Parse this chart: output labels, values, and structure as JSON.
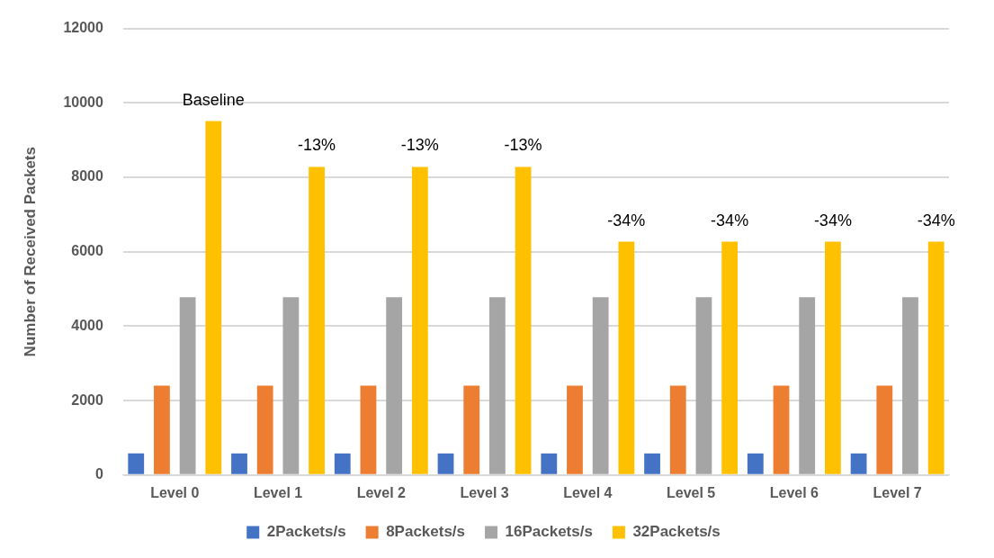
{
  "chart_data": {
    "type": "bar",
    "ylabel": "Number of Received Packets",
    "categories": [
      "Level 0",
      "Level 1",
      "Level 2",
      "Level 3",
      "Level 4",
      "Level 5",
      "Level 6",
      "Level 7"
    ],
    "series": [
      {
        "name": "2Packets/s",
        "color": "#4472c4",
        "values": [
          580,
          580,
          580,
          580,
          580,
          580,
          580,
          580
        ]
      },
      {
        "name": "8Packets/s",
        "color": "#ed7d31",
        "values": [
          2400,
          2400,
          2400,
          2400,
          2400,
          2400,
          2400,
          2400
        ]
      },
      {
        "name": "16Packets/s",
        "color": "#a5a5a5",
        "values": [
          4780,
          4780,
          4780,
          4780,
          4780,
          4780,
          4780,
          4780
        ]
      },
      {
        "name": "32Packets/s",
        "color": "#ffc000",
        "values": [
          9510,
          8280,
          8280,
          8280,
          6270,
          6270,
          6270,
          6270
        ]
      }
    ],
    "annotations": [
      "Baseline",
      "-13%",
      "-13%",
      "-13%",
      "-34%",
      "-34%",
      "-34%",
      "-34%"
    ],
    "ylim": [
      0,
      12000
    ],
    "yticks": [
      0,
      2000,
      4000,
      6000,
      8000,
      10000,
      12000
    ],
    "grid": "y",
    "legend": "bottom"
  }
}
